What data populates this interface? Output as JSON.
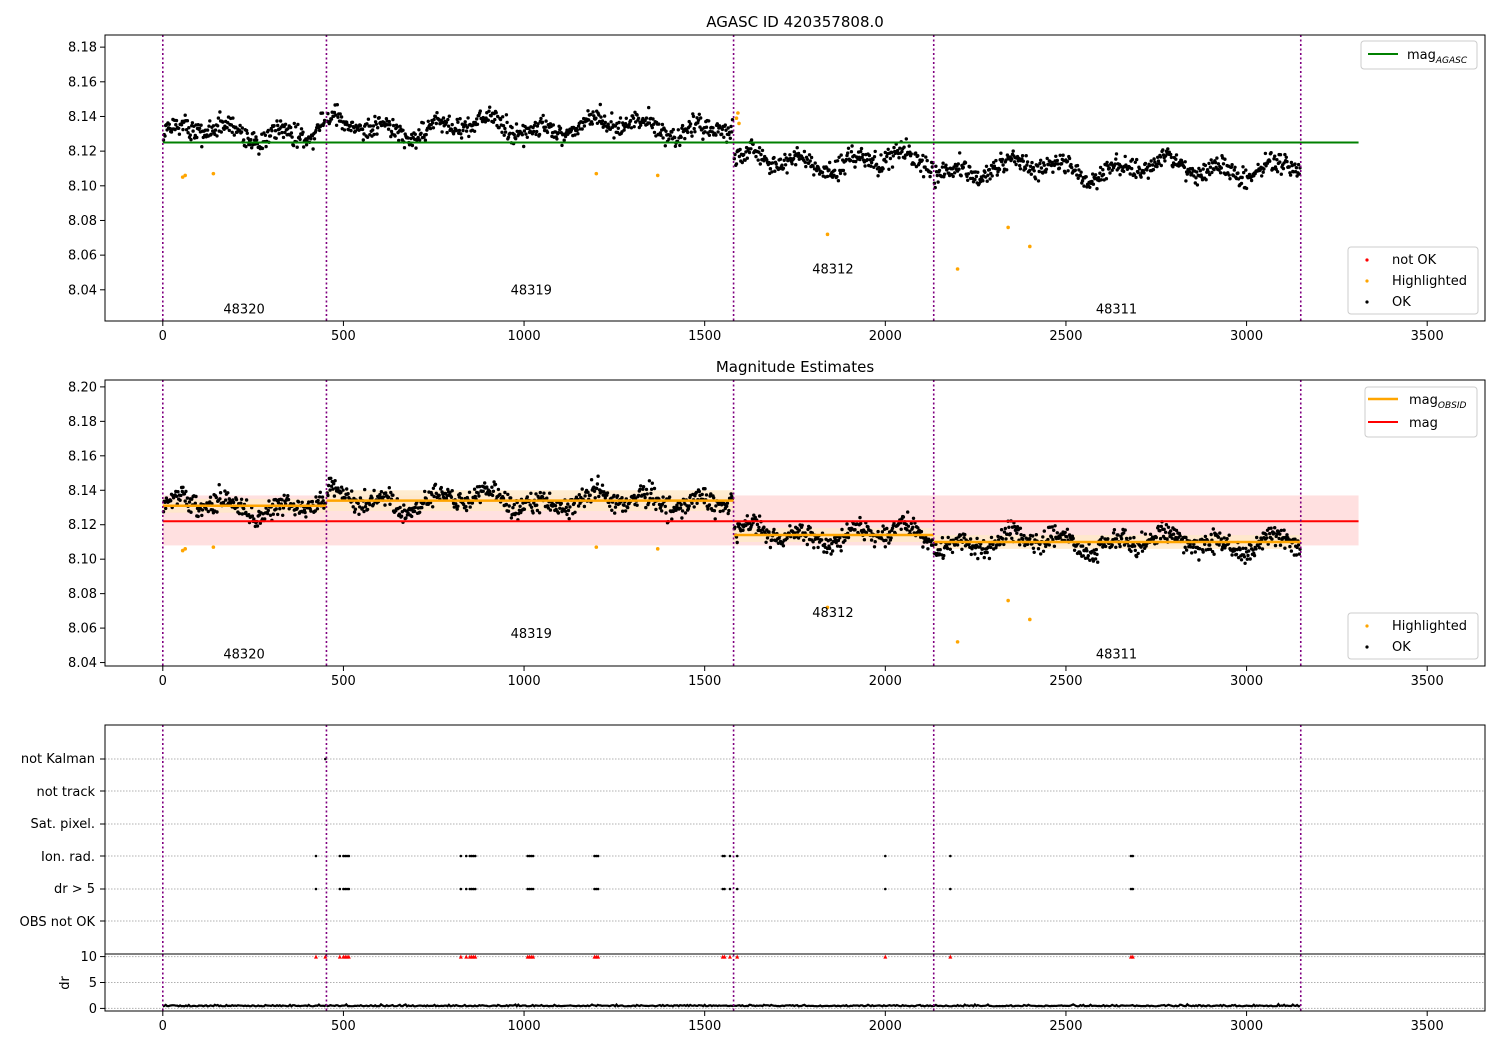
{
  "chart_data": [
    {
      "type": "scatter",
      "title": "AGASC ID 420357808.0",
      "xlim": [
        -160,
        3660
      ],
      "ylim": [
        8.022,
        8.187
      ],
      "x_ticks": [
        0,
        500,
        1000,
        1500,
        2000,
        2500,
        3000,
        3500
      ],
      "y_ticks": [
        8.04,
        8.06,
        8.08,
        8.1,
        8.12,
        8.14,
        8.16,
        8.18
      ],
      "y_tick_labels": [
        "8.04",
        "8.06",
        "8.08",
        "8.10",
        "8.12",
        "8.14",
        "8.16",
        "8.18"
      ],
      "obs_boundaries": [
        0,
        453,
        1580,
        2134,
        3150
      ],
      "obsid_labels": [
        {
          "text": "48320",
          "x": 225,
          "y": 8.029
        },
        {
          "text": "48319",
          "x": 1020,
          "y": 8.04
        },
        {
          "text": "48312",
          "x": 1855,
          "y": 8.052
        },
        {
          "text": "48311",
          "x": 2640,
          "y": 8.029
        }
      ],
      "mag_agasc": {
        "value": 8.125,
        "x_range": [
          0,
          3310
        ]
      },
      "segments": [
        {
          "x_range": [
            0,
            453
          ],
          "mean": 8.131,
          "spread": 0.008
        },
        {
          "x_range": [
            453,
            1580
          ],
          "mean": 8.134,
          "spread": 0.008
        },
        {
          "x_range": [
            1580,
            2134
          ],
          "mean": 8.114,
          "spread": 0.008
        },
        {
          "x_range": [
            2134,
            3150
          ],
          "mean": 8.11,
          "spread": 0.008
        }
      ],
      "highlighted": [
        [
          55,
          8.105
        ],
        [
          62,
          8.106
        ],
        [
          140,
          8.107
        ],
        [
          1200,
          8.107
        ],
        [
          1370,
          8.106
        ],
        [
          1588,
          8.139
        ],
        [
          1592,
          8.142
        ],
        [
          1595,
          8.136
        ],
        [
          1840,
          8.072
        ],
        [
          2200,
          8.052
        ],
        [
          2340,
          8.076
        ],
        [
          2400,
          8.065
        ]
      ],
      "legend_top": [
        {
          "label": "mag",
          "subscript": "AGASC",
          "color": "#008000"
        }
      ],
      "legend_bottom": [
        {
          "label": "not OK",
          "color": "#ff0000"
        },
        {
          "label": "Highlighted",
          "color": "#ffa500"
        },
        {
          "label": "OK",
          "color": "#000000"
        }
      ],
      "colors": {
        "ok": "#000000",
        "highlighted": "#ffa500",
        "not_ok": "#ff0000",
        "boundary": "#800080",
        "agasc": "#008000"
      }
    },
    {
      "type": "scatter",
      "title": "Magnitude Estimates",
      "xlim": [
        -160,
        3660
      ],
      "ylim": [
        8.038,
        8.204
      ],
      "x_ticks": [
        0,
        500,
        1000,
        1500,
        2000,
        2500,
        3000,
        3500
      ],
      "y_ticks": [
        8.04,
        8.06,
        8.08,
        8.1,
        8.12,
        8.14,
        8.16,
        8.18,
        8.2
      ],
      "y_tick_labels": [
        "8.04",
        "8.06",
        "8.08",
        "8.10",
        "8.12",
        "8.14",
        "8.16",
        "8.18",
        "8.20"
      ],
      "obs_boundaries": [
        0,
        453,
        1580,
        2134,
        3150
      ],
      "obsid_labels": [
        {
          "text": "48320",
          "x": 225,
          "y": 8.045
        },
        {
          "text": "48319",
          "x": 1020,
          "y": 8.057
        },
        {
          "text": "48312",
          "x": 1855,
          "y": 8.069
        },
        {
          "text": "48311",
          "x": 2640,
          "y": 8.045
        }
      ],
      "mag": {
        "value": 8.122,
        "band": [
          8.108,
          8.137
        ],
        "x_range": [
          0,
          3310
        ]
      },
      "mag_obsid": [
        {
          "x_range": [
            0,
            453
          ],
          "value": 8.131,
          "band": [
            8.127,
            8.135
          ]
        },
        {
          "x_range": [
            453,
            1580
          ],
          "value": 8.134,
          "band": [
            8.128,
            8.14
          ]
        },
        {
          "x_range": [
            1580,
            2134
          ],
          "value": 8.114,
          "band": [
            8.11,
            8.118
          ]
        },
        {
          "x_range": [
            2134,
            3150
          ],
          "value": 8.11,
          "band": [
            8.106,
            8.114
          ]
        }
      ],
      "segments": [
        {
          "x_range": [
            0,
            453
          ],
          "mean": 8.131,
          "spread": 0.008
        },
        {
          "x_range": [
            453,
            1580
          ],
          "mean": 8.134,
          "spread": 0.008
        },
        {
          "x_range": [
            1580,
            2134
          ],
          "mean": 8.114,
          "spread": 0.008
        },
        {
          "x_range": [
            2134,
            3150
          ],
          "mean": 8.11,
          "spread": 0.008
        }
      ],
      "highlighted": [
        [
          55,
          8.105
        ],
        [
          62,
          8.106
        ],
        [
          140,
          8.107
        ],
        [
          1200,
          8.107
        ],
        [
          1370,
          8.106
        ],
        [
          1840,
          8.072
        ],
        [
          2200,
          8.052
        ],
        [
          2340,
          8.076
        ],
        [
          2400,
          8.065
        ]
      ],
      "legend_top": [
        {
          "label": "mag",
          "subscript": "OBSID",
          "color": "#ffa500"
        },
        {
          "label": "mag",
          "subscript": "",
          "color": "#ff0000"
        }
      ],
      "legend_bottom": [
        {
          "label": "Highlighted",
          "color": "#ffa500"
        },
        {
          "label": "OK",
          "color": "#000000"
        }
      ],
      "colors": {
        "ok": "#000000",
        "highlighted": "#ffa500",
        "mag": "#ff0000",
        "mag_band": "#ffe0e0",
        "mag_obsid": "#ffa500",
        "mag_obsid_band": "#ffe9c8",
        "boundary": "#800080"
      }
    },
    {
      "type": "scatter",
      "title": "",
      "xlim": [
        -160,
        3660
      ],
      "x_ticks": [
        0,
        500,
        1000,
        1500,
        2000,
        2500,
        3000,
        3500
      ],
      "flag_rows": [
        "not Kalman",
        "not track",
        "Sat. pixel.",
        "Ion. rad.",
        "dr > 5",
        "OBS not OK"
      ],
      "flag_points": {
        "Ion. rad.": [
          424,
          490,
          500,
          505,
          510,
          515,
          825,
          840,
          850,
          855,
          860,
          865,
          1010,
          1015,
          1020,
          1025,
          1195,
          1200,
          1205,
          1550,
          1555,
          1570,
          1590,
          2000,
          2180,
          2680,
          2685
        ],
        "dr > 5": [
          424,
          490,
          500,
          505,
          510,
          515,
          825,
          840,
          850,
          855,
          860,
          865,
          1010,
          1015,
          1020,
          1025,
          1195,
          1200,
          1205,
          1550,
          1555,
          1570,
          1590,
          2000,
          2180,
          2680,
          2685
        ],
        "not Kalman": [
          450
        ]
      },
      "dr": {
        "ylabel": "dr",
        "ylim": [
          -0.5,
          10.5
        ],
        "y_ticks": [
          0,
          5,
          10
        ],
        "typical": 0.4,
        "x_range": [
          0,
          3150
        ],
        "clipped_x": [
          424,
          450,
          490,
          500,
          505,
          510,
          515,
          825,
          840,
          850,
          855,
          860,
          865,
          1010,
          1015,
          1020,
          1025,
          1195,
          1200,
          1205,
          1550,
          1555,
          1570,
          1590,
          2000,
          2180,
          2680,
          2685
        ]
      },
      "obs_boundaries": [
        0,
        453,
        1580,
        2134,
        3150
      ],
      "colors": {
        "points": "#000000",
        "clipped": "#ff0000",
        "grid": "#b0b0b0",
        "boundary": "#800080"
      }
    }
  ]
}
